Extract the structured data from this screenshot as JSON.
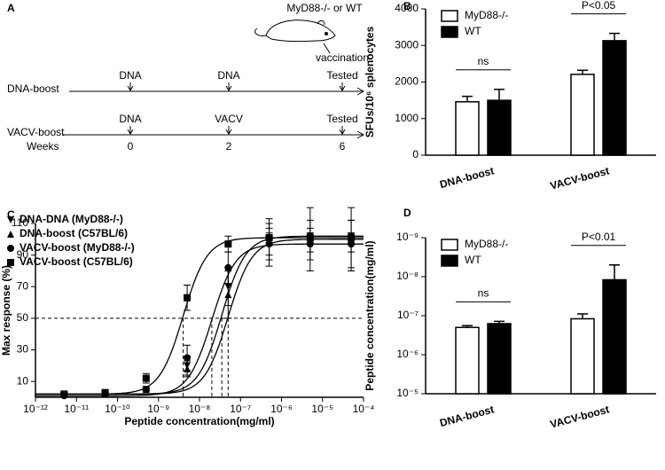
{
  "schematic": {
    "panel": "A",
    "header": "MyD88-/- or WT",
    "event": "vaccination",
    "rows": [
      {
        "label": "DNA-boost",
        "steps": [
          "DNA",
          "DNA",
          "Tested"
        ]
      },
      {
        "label": "VACV-boost",
        "steps": [
          "DNA",
          "VACV",
          "Tested"
        ]
      }
    ],
    "weeks": {
      "label": "Weeks",
      "values": [
        0,
        2,
        6
      ]
    }
  },
  "chart_data": [
    {
      "panel": "B",
      "type": "bar",
      "ylabel": "SFUs/10⁶ splenocytes",
      "categories": [
        "DNA-boost",
        "VACV-boost"
      ],
      "series": [
        {
          "name": "MyD88-/-",
          "color": "#ffffff",
          "values": [
            1460,
            2210
          ],
          "errors": [
            150,
            110
          ]
        },
        {
          "name": "WT",
          "color": "#000000",
          "values": [
            1500,
            3130
          ],
          "errors": [
            300,
            200
          ]
        }
      ],
      "annotations": [
        "ns",
        "P<0.05"
      ],
      "ylim": [
        0,
        4000
      ],
      "yticks": [
        0,
        1000,
        2000,
        3000,
        4000
      ]
    },
    {
      "panel": "C",
      "type": "scatter",
      "xlabel": "Peptide concentration(mg/ml)",
      "ylabel": "Max response (%)",
      "xscale": "log",
      "x": [
        5e-12,
        5e-11,
        5e-10,
        5e-09,
        5e-08,
        5e-07,
        5e-06,
        5e-05
      ],
      "series": [
        {
          "name": "DNA-DNA (MyD88-/-)",
          "marker": "triangle-down",
          "color": "#000000",
          "values": [
            2,
            2,
            5,
            20,
            70,
            100,
            102,
            102
          ],
          "errors": [
            1,
            1,
            1,
            6,
            12,
            10,
            10,
            10
          ],
          "ec50": 3.5e-08
        },
        {
          "name": "DNA-boost (C57BL/6)",
          "marker": "triangle-up",
          "color": "#000000",
          "values": [
            2,
            2,
            5,
            18,
            65,
            98,
            100,
            100
          ],
          "errors": [
            1,
            1,
            1,
            5,
            15,
            15,
            20,
            20
          ],
          "ec50": 5e-08
        },
        {
          "name": "VACV-boost (MyD88-/-)",
          "marker": "circle",
          "color": "#000000",
          "values": [
            1,
            2,
            5,
            25,
            82,
            97,
            97,
            97
          ],
          "errors": [
            1,
            1,
            1,
            8,
            10,
            10,
            10,
            15
          ],
          "ec50": 2e-08
        },
        {
          "name": "VACV-boost (C57BL/6)",
          "marker": "square",
          "color": "#000000",
          "values": [
            2,
            3,
            12,
            63,
            97,
            101,
            101,
            101
          ],
          "errors": [
            1,
            1,
            3,
            8,
            5,
            3,
            3,
            3
          ],
          "ec50": 4e-09
        }
      ],
      "threshold": 50,
      "xlim": [
        1e-12,
        0.0001
      ],
      "xticks": [
        {
          "value": 1e-12,
          "label": "10⁻¹²"
        },
        {
          "value": 1e-11,
          "label": "10⁻¹¹"
        },
        {
          "value": 1e-10,
          "label": "10⁻¹⁰"
        },
        {
          "value": 1e-09,
          "label": "10⁻⁹"
        },
        {
          "value": 1e-08,
          "label": "10⁻⁸"
        },
        {
          "value": 1e-07,
          "label": "10⁻⁷"
        },
        {
          "value": 1e-06,
          "label": "10⁻⁶"
        },
        {
          "value": 1e-05,
          "label": "10⁻⁵"
        },
        {
          "value": 0.0001,
          "label": "10⁻⁴"
        }
      ],
      "ylim": [
        0,
        110
      ],
      "yticks": [
        10,
        30,
        50,
        70,
        90,
        110
      ]
    },
    {
      "panel": "D",
      "type": "bar",
      "ylabel": "Peptide concentration(mg/ml)",
      "yscale": "log",
      "categories": [
        "DNA-boost",
        "VACV-boost"
      ],
      "series": [
        {
          "name": "MyD88-/-",
          "color": "#ffffff",
          "values": [
            2e-07,
            1.2e-07
          ],
          "errors": [
            2e-08,
            3e-08
          ]
        },
        {
          "name": "WT",
          "color": "#000000",
          "values": [
            1.6e-07,
            1.2e-08
          ],
          "errors": [
            2e-08,
            7e-09
          ]
        }
      ],
      "annotations": [
        "ns",
        "P<0.01"
      ],
      "ylim": [
        1e-05,
        1e-09
      ],
      "yticks": [
        {
          "value": 1e-09,
          "label": "10⁻⁹"
        },
        {
          "value": 1e-08,
          "label": "10⁻⁸"
        },
        {
          "value": 1e-07,
          "label": "10⁻⁷"
        },
        {
          "value": 1e-06,
          "label": "10⁻⁶"
        },
        {
          "value": 1e-05,
          "label": "10⁻⁵"
        }
      ]
    }
  ]
}
